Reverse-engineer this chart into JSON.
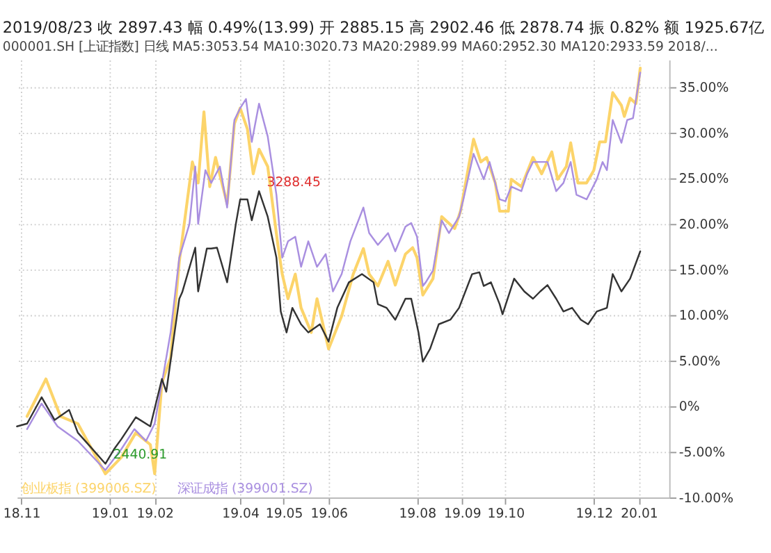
{
  "chart_data": {
    "type": "line",
    "title": "2019/08/23 收 2897.43 幅 0.49%(13.99) 开 2885.15 高 2902.46 低 2878.74 振 0.82% 额 1925.67亿",
    "subtitle": "000001.SH [上证指数] 日线 MA5:3053.54 MA10:3020.73 MA20:2989.99 MA60:2952.30 MA120:2933.59 2018/...",
    "series": [
      {
        "name": "创业板指 (399006.SZ)",
        "color": "#fcd46a",
        "x": [
          "2018-11-05",
          "2018-11-18",
          "2018-11-28",
          "2018-12-10",
          "2018-12-29",
          "2019-01-09",
          "2019-01-19",
          "2019-01-29",
          "2019-02-01",
          "2019-02-06",
          "2019-02-12",
          "2019-02-18",
          "2019-02-27",
          "2019-03-03",
          "2019-03-07",
          "2019-03-11",
          "2019-03-15",
          "2019-03-23",
          "2019-03-28",
          "2019-04-01",
          "2019-04-06",
          "2019-04-10",
          "2019-04-14",
          "2019-04-20",
          "2019-04-27",
          "2019-04-30",
          "2019-05-04",
          "2019-05-09",
          "2019-05-13",
          "2019-05-20",
          "2019-05-24",
          "2019-06-01",
          "2019-06-10",
          "2019-06-18",
          "2019-06-25",
          "2019-06-29",
          "2019-07-05",
          "2019-07-12",
          "2019-07-17",
          "2019-07-24",
          "2019-07-29",
          "2019-08-01",
          "2019-08-05",
          "2019-08-12",
          "2019-08-18",
          "2019-08-27",
          "2019-08-31",
          "2019-09-09",
          "2019-09-14",
          "2019-09-18",
          "2019-09-24",
          "2019-09-27",
          "2019-10-03",
          "2019-10-05",
          "2019-10-12",
          "2019-10-20",
          "2019-10-26",
          "2019-11-02",
          "2019-11-06",
          "2019-11-12",
          "2019-11-15",
          "2019-11-20",
          "2019-11-26",
          "2019-12-01",
          "2019-12-05",
          "2019-12-09",
          "2019-12-14",
          "2019-12-20",
          "2019-12-22",
          "2019-12-26",
          "2019-12-30",
          "2020-01-02"
        ],
        "values": [
          -1.1,
          3.0,
          -1.1,
          -1.9,
          -7.4,
          -5.6,
          -2.9,
          -4.2,
          -7.4,
          2.6,
          5.3,
          15.9,
          26.8,
          24.5,
          32.3,
          24.1,
          27.3,
          22.2,
          31.0,
          32.7,
          30.4,
          25.5,
          28.2,
          26.3,
          17.7,
          14.5,
          11.8,
          14.5,
          10.8,
          8.1,
          11.8,
          6.3,
          9.9,
          14.5,
          17.3,
          14.5,
          13.2,
          15.9,
          13.3,
          16.7,
          17.4,
          16.3,
          12.2,
          14.0,
          20.8,
          19.5,
          21.4,
          29.3,
          26.8,
          27.3,
          24.5,
          21.4,
          21.4,
          24.9,
          24.1,
          27.3,
          25.5,
          27.9,
          24.9,
          26.3,
          28.9,
          24.5,
          24.5,
          25.9,
          29.0,
          29.0,
          34.4,
          33.0,
          31.8,
          33.8,
          33.2,
          37.1
        ]
      },
      {
        "name": "深证成指 (399001.SZ)",
        "color": "#a98fe0",
        "x": [
          "2018-11-05",
          "2018-11-15",
          "2018-11-26",
          "2018-12-10",
          "2018-12-29",
          "2019-01-09",
          "2019-01-18",
          "2019-01-26",
          "2019-02-01",
          "2019-02-08",
          "2019-02-12",
          "2019-02-18",
          "2019-02-25",
          "2019-03-01",
          "2019-03-03",
          "2019-03-08",
          "2019-03-12",
          "2019-03-18",
          "2019-03-23",
          "2019-03-28",
          "2019-04-01",
          "2019-04-05",
          "2019-04-09",
          "2019-04-14",
          "2019-04-20",
          "2019-04-26",
          "2019-04-30",
          "2019-05-04",
          "2019-05-09",
          "2019-05-13",
          "2019-05-18",
          "2019-05-24",
          "2019-05-30",
          "2019-06-04",
          "2019-06-10",
          "2019-06-16",
          "2019-06-25",
          "2019-06-29",
          "2019-07-05",
          "2019-07-12",
          "2019-07-17",
          "2019-07-24",
          "2019-07-28",
          "2019-08-01",
          "2019-08-05",
          "2019-08-07",
          "2019-08-12",
          "2019-08-18",
          "2019-08-23",
          "2019-08-30",
          "2019-09-02",
          "2019-09-09",
          "2019-09-16",
          "2019-09-20",
          "2019-09-27",
          "2019-10-01",
          "2019-10-05",
          "2019-10-12",
          "2019-10-16",
          "2019-10-20",
          "2019-10-30",
          "2019-11-05",
          "2019-11-10",
          "2019-11-15",
          "2019-11-19",
          "2019-11-26",
          "2019-12-03",
          "2019-12-07",
          "2019-12-10",
          "2019-12-14",
          "2019-12-20",
          "2019-12-24",
          "2019-12-28",
          "2020-01-02"
        ],
        "values": [
          -2.5,
          0.3,
          -2.2,
          -3.8,
          -7.0,
          -4.7,
          -2.5,
          -3.8,
          -1.9,
          4.4,
          8.1,
          16.3,
          20.0,
          26.3,
          20.0,
          25.9,
          24.5,
          26.3,
          21.8,
          31.4,
          32.7,
          33.7,
          29.0,
          33.2,
          29.6,
          23.2,
          16.3,
          18.1,
          18.6,
          15.3,
          18.1,
          15.3,
          16.7,
          12.6,
          14.5,
          18.1,
          21.8,
          19.0,
          17.7,
          19.0,
          17.0,
          19.7,
          20.1,
          18.6,
          13.2,
          13.6,
          14.9,
          20.4,
          19.0,
          20.8,
          22.7,
          27.7,
          24.9,
          26.8,
          22.7,
          22.5,
          24.1,
          23.6,
          25.5,
          26.8,
          26.8,
          23.6,
          24.5,
          26.8,
          23.2,
          22.7,
          24.9,
          26.8,
          25.9,
          31.4,
          28.9,
          31.4,
          31.6,
          36.6
        ]
      },
      {
        "color": "#333333",
        "x": [
          "2018-10-29",
          "2018-11-05",
          "2018-11-15",
          "2018-11-24",
          "2018-12-04",
          "2018-12-10",
          "2018-12-19",
          "2018-12-29",
          "2019-01-04",
          "2019-01-09",
          "2019-01-19",
          "2019-01-29",
          "2019-02-06",
          "2019-02-09",
          "2019-02-18",
          "2019-02-20",
          "2019-03-01",
          "2019-03-03",
          "2019-03-09",
          "2019-03-12",
          "2019-03-16",
          "2019-03-23",
          "2019-03-29",
          "2019-04-01",
          "2019-04-06",
          "2019-04-09",
          "2019-04-14",
          "2019-04-20",
          "2019-04-26",
          "2019-04-29",
          "2019-05-03",
          "2019-05-07",
          "2019-05-13",
          "2019-05-18",
          "2019-05-26",
          "2019-06-01",
          "2019-06-07",
          "2019-06-15",
          "2019-06-24",
          "2019-07-02",
          "2019-07-05",
          "2019-07-11",
          "2019-07-17",
          "2019-07-24",
          "2019-07-28",
          "2019-08-02",
          "2019-08-05",
          "2019-08-10",
          "2019-08-16",
          "2019-08-24",
          "2019-08-30",
          "2019-09-08",
          "2019-09-13",
          "2019-09-16",
          "2019-09-21",
          "2019-09-27",
          "2019-09-29",
          "2019-10-07",
          "2019-10-14",
          "2019-10-20",
          "2019-10-25",
          "2019-10-30",
          "2019-11-05",
          "2019-11-10",
          "2019-11-16",
          "2019-11-22",
          "2019-11-27",
          "2019-12-03",
          "2019-12-10",
          "2019-12-14",
          "2019-12-20",
          "2019-12-26",
          "2020-01-02"
        ],
        "values": [
          -2.2,
          -1.9,
          1.0,
          -1.5,
          -0.4,
          -2.9,
          -4.5,
          -6.3,
          -4.7,
          -3.6,
          -1.2,
          -2.2,
          3.0,
          1.6,
          11.8,
          12.5,
          17.4,
          12.6,
          17.3,
          17.3,
          17.4,
          13.6,
          20.0,
          22.7,
          22.7,
          20.4,
          23.6,
          20.8,
          16.3,
          10.4,
          8.1,
          10.8,
          9.0,
          8.1,
          9.0,
          7.1,
          10.8,
          13.6,
          14.5,
          13.6,
          11.2,
          10.8,
          9.5,
          11.8,
          11.8,
          8.1,
          4.9,
          6.3,
          9.0,
          9.5,
          10.8,
          14.5,
          14.7,
          13.2,
          13.6,
          11.2,
          10.1,
          14.0,
          12.6,
          11.8,
          12.6,
          13.3,
          11.8,
          10.4,
          10.8,
          9.5,
          9.0,
          10.4,
          10.8,
          14.5,
          12.6,
          14.0,
          17.0
        ]
      }
    ],
    "annotations": [
      {
        "text": "3288.45",
        "x": "2019-04-14",
        "y": 23.6
      },
      {
        "text": "2440.91",
        "x": "2018-12-29",
        "y": -6.3
      }
    ],
    "xlim": [
      "2018-10-29",
      "2020-01-22"
    ],
    "xticks": [
      {
        "value": "2018-11-01",
        "label": "18.11"
      },
      {
        "value": "2019-01-01",
        "label": "19.01"
      },
      {
        "value": "2019-02-01",
        "label": "19.02"
      },
      {
        "value": "2019-04-01",
        "label": "19.04"
      },
      {
        "value": "2019-05-01",
        "label": "19.05"
      },
      {
        "value": "2019-06-01",
        "label": "19.06"
      },
      {
        "value": "2019-08-01",
        "label": "19.08"
      },
      {
        "value": "2019-09-01",
        "label": "19.09"
      },
      {
        "value": "2019-10-01",
        "label": "19.10"
      },
      {
        "value": "2019-12-01",
        "label": "19.12"
      },
      {
        "value": "2020-01-01",
        "label": "20.01"
      }
    ],
    "ylim": [
      -10,
      38
    ],
    "yticks": [
      {
        "value": -10,
        "label": "-10.00%"
      },
      {
        "value": -5,
        "label": "-5.00%"
      },
      {
        "value": 0,
        "label": "0%"
      },
      {
        "value": 5,
        "label": "5.00%"
      },
      {
        "value": 10,
        "label": "10.00%"
      },
      {
        "value": 15,
        "label": "15.00%"
      },
      {
        "value": 20,
        "label": "20.00%"
      },
      {
        "value": 25,
        "label": "25.00%"
      },
      {
        "value": 30,
        "label": "30.00%"
      },
      {
        "value": 35,
        "label": "35.00%"
      }
    ],
    "grid": true,
    "legend": "bottom left",
    "marker": "none",
    "line_style": "solid"
  }
}
